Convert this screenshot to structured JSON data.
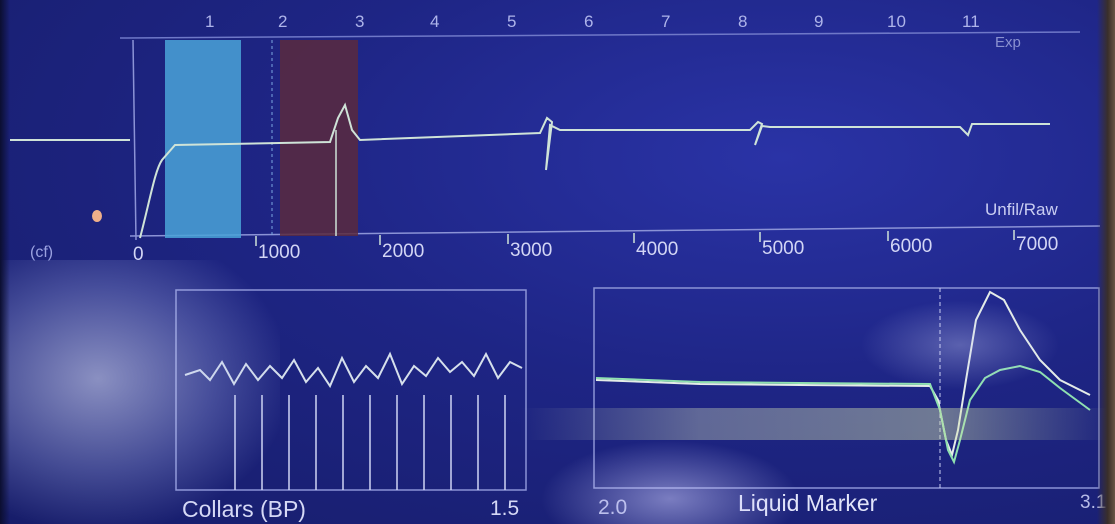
{
  "top_panel": {
    "corner_label": "Exp",
    "axis_ticks": [
      "1",
      "2",
      "3",
      "4",
      "5",
      "6",
      "7",
      "8",
      "9",
      "10",
      "11"
    ],
    "left_label": "(cf)"
  },
  "depth_axis": {
    "unit_label": "Unfil/Raw",
    "ticks": [
      "0",
      "1000",
      "2000",
      "3000",
      "4000",
      "5000",
      "6000",
      "7000"
    ]
  },
  "collars_panel": {
    "title": "Collars (BP)",
    "scale_value": "1.5"
  },
  "liquid_panel": {
    "title": "Liquid Marker",
    "scale_left": "2.0",
    "scale_right": "3.1"
  },
  "colors": {
    "background": "#1e2585",
    "trace": "#cfe3d8",
    "green_trace": "#8fe0b0",
    "band_cyan": "#4aa3d8",
    "band_brown": "#5a2a3e",
    "grid_line": "#8b93d6"
  }
}
